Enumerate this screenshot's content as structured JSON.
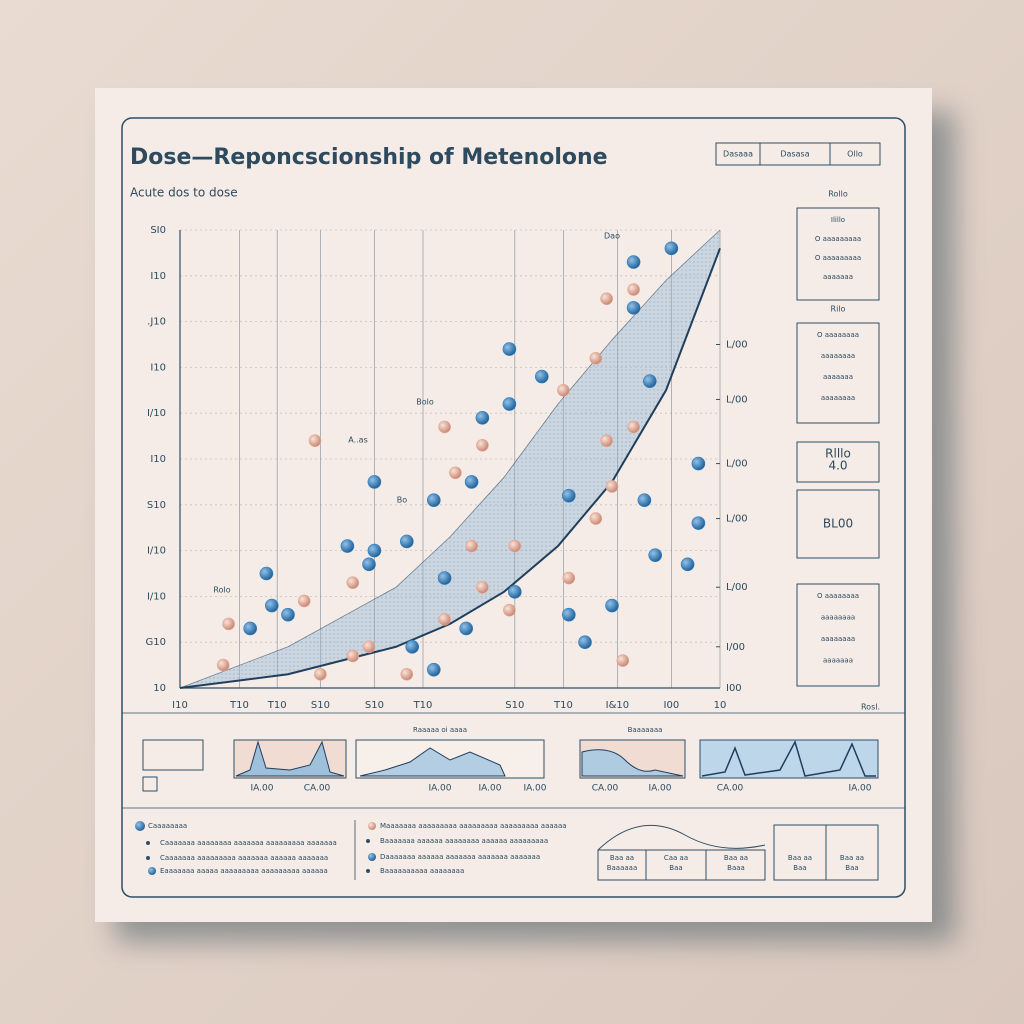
{
  "chart_data": {
    "type": "scatter",
    "title": "Dose—Reponcscionship of Metenolone",
    "subtitle": "Acute dos to dose",
    "annotations": [
      "A..as",
      "Bolo",
      "Bo",
      "Rolo",
      "Dao"
    ],
    "x_label": "Rosl.",
    "xlim": [
      0,
      10
    ],
    "xticks": [
      {
        "value": 0,
        "label": "I10"
      },
      {
        "value": 1.1,
        "label": "T10"
      },
      {
        "value": 1.8,
        "label": "T10"
      },
      {
        "value": 2.6,
        "label": "S10"
      },
      {
        "value": 3.6,
        "label": "S10"
      },
      {
        "value": 4.5,
        "label": "T10"
      },
      {
        "value": 6.2,
        "label": "S10"
      },
      {
        "value": 7.1,
        "label": "T10"
      },
      {
        "value": 8.1,
        "label": "I&10"
      },
      {
        "value": 9.1,
        "label": "I00"
      },
      {
        "value": 10,
        "label": "10"
      }
    ],
    "ylim": [
      0,
      10
    ],
    "yticks": [
      {
        "value": 0,
        "label": "10"
      },
      {
        "value": 1,
        "label": "G10"
      },
      {
        "value": 2,
        "label": "I/10"
      },
      {
        "value": 3,
        "label": "I/10"
      },
      {
        "value": 4,
        "label": "S10"
      },
      {
        "value": 5,
        "label": "I10"
      },
      {
        "value": 6,
        "label": "I/10"
      },
      {
        "value": 7,
        "label": "I10"
      },
      {
        "value": 8,
        "label": ".J10"
      },
      {
        "value": 9,
        "label": "I10"
      },
      {
        "value": 10,
        "label": "SI0"
      }
    ],
    "y2lim": [
      0,
      10
    ],
    "y2ticks": [
      {
        "value": 0,
        "label": "I00"
      },
      {
        "value": 0.9,
        "label": "I/00"
      },
      {
        "value": 2.2,
        "label": "L/00"
      },
      {
        "value": 3.7,
        "label": "L/00"
      },
      {
        "value": 4.9,
        "label": "L/00"
      },
      {
        "value": 6.3,
        "label": "L/00"
      },
      {
        "value": 7.5,
        "label": "L/00"
      }
    ],
    "grid": true,
    "series": [
      {
        "color": "#2f7fc1",
        "x": [
          1.3,
          2.0,
          1.7,
          1.6,
          3.1,
          3.5,
          3.6,
          3.6,
          4.2,
          4.7,
          4.9,
          5.3,
          5.4,
          5.6,
          6.1,
          6.1,
          6.7,
          6.2,
          7.2,
          7.2,
          7.5,
          8.0,
          8.6,
          8.8,
          9.4,
          8.7,
          9.6,
          9.6,
          8.4,
          8.4,
          9.1,
          4.3,
          4.7
        ],
        "values": [
          1.3,
          1.6,
          1.8,
          2.5,
          3.1,
          2.7,
          3.0,
          4.5,
          3.2,
          4.1,
          2.4,
          1.3,
          4.5,
          5.9,
          6.2,
          7.4,
          6.8,
          2.1,
          4.2,
          1.6,
          1.0,
          1.8,
          4.1,
          2.9,
          2.7,
          6.7,
          4.9,
          3.6,
          8.3,
          9.3,
          9.6,
          0.9,
          0.4
        ]
      },
      {
        "color": "#e3a994",
        "x": [
          2.5,
          0.9,
          0.8,
          2.3,
          3.2,
          2.6,
          3.2,
          3.5,
          4.2,
          4.9,
          4.9,
          5.1,
          5.4,
          5.6,
          6.2,
          6.1,
          7.1,
          7.7,
          7.2,
          7.7,
          8.0,
          7.9,
          8.4,
          8.4,
          7.9,
          8.2,
          5.6
        ],
        "values": [
          5.4,
          1.4,
          0.5,
          1.9,
          2.3,
          0.3,
          0.7,
          0.9,
          0.3,
          1.5,
          5.7,
          4.7,
          3.1,
          5.3,
          3.1,
          1.7,
          6.5,
          7.2,
          2.4,
          3.7,
          4.4,
          5.4,
          5.7,
          8.7,
          8.5,
          0.6,
          2.2
        ]
      }
    ],
    "band": {
      "x": [
        0,
        2,
        4,
        5,
        6,
        7,
        8,
        9,
        10
      ],
      "upper": [
        0,
        0.9,
        2.2,
        3.3,
        4.6,
        6.2,
        7.6,
        8.9,
        10
      ],
      "lower": [
        0,
        0.3,
        0.9,
        1.4,
        2.1,
        3.1,
        4.5,
        6.5,
        9.6
      ],
      "color": "#9bbcd6",
      "line_color": "#1f3f5e"
    }
  },
  "header_legend": [
    "Dasaaa",
    "Dasasa",
    "Ollo"
  ],
  "side_boxes": [
    {
      "heading": "Rollo",
      "lines": [
        "Ilillo",
        "O aaaaaaaaa",
        "O aaaaaaaaa",
        "aaaaaaa"
      ]
    },
    {
      "heading": "Rilo",
      "lines": [
        "O aaaaaaaa",
        "aaaaaaaa",
        "aaaaaaa",
        "aaaaaaaa"
      ]
    },
    {
      "heading": "",
      "lines": [
        "Rlllo",
        "4.0"
      ]
    },
    {
      "heading": "",
      "lines": [
        "BL00"
      ]
    },
    {
      "heading": "",
      "lines": [
        "O aaaaaaaa",
        "aaaaaaaa",
        "aaaaaaaa",
        "aaaaaaa"
      ]
    }
  ],
  "bottom_labels": [
    "IA.00",
    "CA.00",
    "IA.00",
    "IA.00",
    "IA.00",
    "CA.00",
    "IA.00",
    "CA.00",
    "IA.00"
  ],
  "bottom_headings": [
    "Raaaaa oi aaaa",
    "Baaaaaaa"
  ],
  "bottom_legend": [
    "Caaaaaaaa",
    "Caaaaaaa aaaaaaaa aaaaaaa aaaaaaaaa aaaaaaa",
    "Caaaaaaa aaaaaaaaa aaaaaaa aaaaaa aaaaaaa",
    "Eaaaaaaa aaaaa aaaaaaaaa aaaaaaaaa aaaaaa",
    "Maaaaaaa aaaaaaaaa aaaaaaaaa aaaaaaaaa aaaaaa",
    "Baaaaaaa aaaaaa aaaaaaaa aaaaaa aaaaaaaaa",
    "Daaaaaaa aaaaaa aaaaaaa aaaaaaa aaaaaaa",
    "Baaaaaaaaaa aaaaaaaa"
  ],
  "diagram_labels": [
    "Baa aa",
    "Baaaaaa",
    "Caa aa",
    "Baa",
    "Baa aa",
    "Baaa",
    "Baa aa",
    "Baa",
    "Baa aa",
    "Baa"
  ]
}
